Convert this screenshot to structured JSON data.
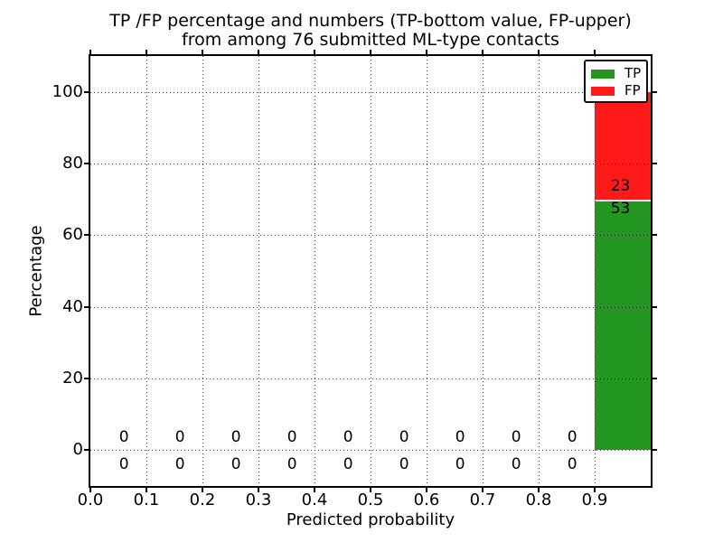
{
  "figure": {
    "background": "#ffffff",
    "title_line1": "TP /FP percentage and numbers (TP-bottom value, FP-upper)",
    "title_line2": "from among 76 submitted ML-type contacts"
  },
  "chart_data": {
    "type": "bar",
    "stacked": true,
    "title": "TP /FP percentage and numbers (TP-bottom value, FP-upper)\nfrom among 76 submitted ML-type contacts",
    "xlabel": "Predicted probability",
    "ylabel": "Percentage",
    "xlim": [
      0.0,
      1.0
    ],
    "ylim": [
      -10,
      110
    ],
    "grid": {
      "style": "dotted",
      "color": "#3a3a3a",
      "drawn_above_bars": true
    },
    "total_contacts": 76,
    "xticks": [
      {
        "value": 0.0,
        "label": "0.0"
      },
      {
        "value": 0.1,
        "label": "0.1"
      },
      {
        "value": 0.2,
        "label": "0.2"
      },
      {
        "value": 0.3,
        "label": "0.3"
      },
      {
        "value": 0.4,
        "label": "0.4"
      },
      {
        "value": 0.5,
        "label": "0.5"
      },
      {
        "value": 0.6,
        "label": "0.6"
      },
      {
        "value": 0.7,
        "label": "0.7"
      },
      {
        "value": 0.8,
        "label": "0.8"
      },
      {
        "value": 0.9,
        "label": "0.9"
      }
    ],
    "yticks": [
      {
        "value": 0,
        "label": "0"
      },
      {
        "value": 20,
        "label": "20"
      },
      {
        "value": 40,
        "label": "40"
      },
      {
        "value": 60,
        "label": "60"
      },
      {
        "value": 80,
        "label": "80"
      },
      {
        "value": 100,
        "label": "100"
      }
    ],
    "bin_edges": [
      0.0,
      0.1,
      0.2,
      0.3,
      0.4,
      0.5,
      0.6,
      0.7,
      0.8,
      0.9,
      1.0
    ],
    "series": [
      {
        "name": "TP",
        "color": "#22961f",
        "counts": [
          0,
          0,
          0,
          0,
          0,
          0,
          0,
          0,
          0,
          53
        ],
        "pct": [
          0,
          0,
          0,
          0,
          0,
          0,
          0,
          0,
          0,
          69.7
        ]
      },
      {
        "name": "FP",
        "color": "#ff1a1a",
        "counts": [
          0,
          0,
          0,
          0,
          0,
          0,
          0,
          0,
          0,
          23
        ],
        "pct": [
          0,
          0,
          0,
          0,
          0,
          0,
          0,
          0,
          0,
          30.3
        ]
      }
    ],
    "bar": {
      "x_start": 0.9,
      "x_end": 1.0,
      "tp_count": 53,
      "fp_count": 23,
      "tp_pct": 69.74,
      "fp_pct": 30.26,
      "tp_color": "#22961f",
      "fp_color": "#ff1a1a",
      "divider_color": "#ffffff"
    },
    "annotations": {
      "zeros": [
        {
          "x": 0.06,
          "fp": "0",
          "tp": "0"
        },
        {
          "x": 0.16,
          "fp": "0",
          "tp": "0"
        },
        {
          "x": 0.26,
          "fp": "0",
          "tp": "0"
        },
        {
          "x": 0.36,
          "fp": "0",
          "tp": "0"
        },
        {
          "x": 0.46,
          "fp": "0",
          "tp": "0"
        },
        {
          "x": 0.56,
          "fp": "0",
          "tp": "0"
        },
        {
          "x": 0.66,
          "fp": "0",
          "tp": "0"
        },
        {
          "x": 0.76,
          "fp": "0",
          "tp": "0"
        },
        {
          "x": 0.86,
          "fp": "0",
          "tp": "0"
        }
      ],
      "fp_zero_y": 3.6,
      "tp_zero_y": -4.0,
      "fp_label": {
        "text": "23",
        "x": 0.946,
        "y": 73.7
      },
      "tp_label": {
        "text": "53",
        "x": 0.946,
        "y": 67.4
      }
    },
    "legend": {
      "position": "upper right",
      "entries": [
        {
          "label": "TP",
          "color": "#22961f"
        },
        {
          "label": "FP",
          "color": "#ff1a1a"
        }
      ]
    }
  }
}
